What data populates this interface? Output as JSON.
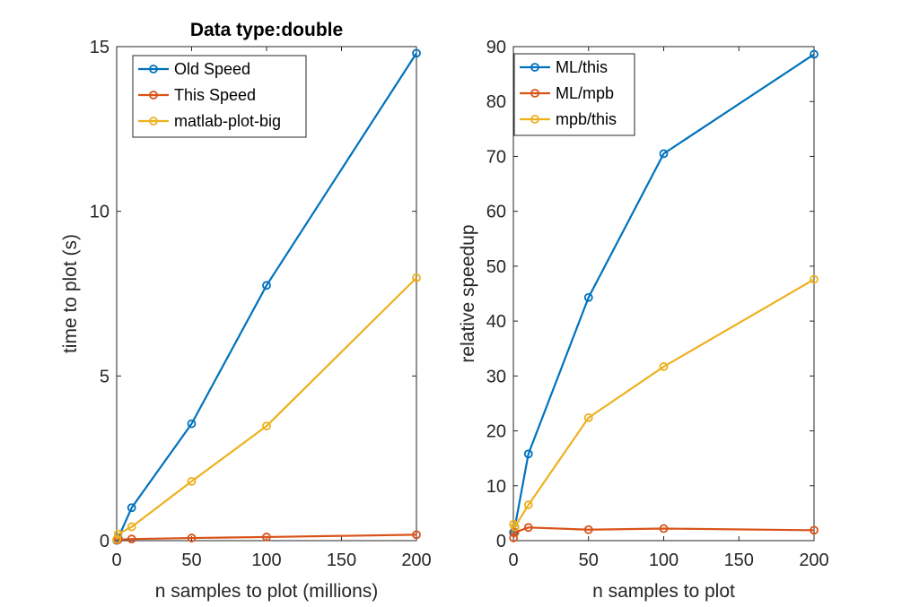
{
  "chart_data": [
    {
      "type": "line",
      "title": "Data type:double",
      "xlabel": "n samples to plot (millions)",
      "ylabel": "time to plot (s)",
      "xlim": [
        0,
        200
      ],
      "ylim": [
        0,
        15
      ],
      "xticks": [
        0,
        50,
        100,
        150,
        200
      ],
      "yticks": [
        0,
        5,
        10,
        15
      ],
      "grid": false,
      "legend_position": "top-left",
      "x": [
        0.1,
        1,
        10,
        50,
        100,
        200
      ],
      "series": [
        {
          "name": "Old Speed",
          "color": "#0072BD",
          "values": [
            0.01,
            0.08,
            1.0,
            3.55,
            7.75,
            14.8
          ]
        },
        {
          "name": "This Speed",
          "color": "#D95319",
          "values": [
            0.02,
            0.03,
            0.05,
            0.08,
            0.11,
            0.18
          ]
        },
        {
          "name": "matlab-plot-big",
          "color": "#EDB120",
          "values": [
            0.04,
            0.2,
            0.42,
            1.8,
            3.48,
            7.98
          ]
        }
      ]
    },
    {
      "type": "line",
      "title": "",
      "xlabel": "n samples to plot",
      "ylabel": "relative speedup",
      "xlim": [
        0,
        200
      ],
      "ylim": [
        0,
        90
      ],
      "xticks": [
        0,
        50,
        100,
        150,
        200
      ],
      "yticks": [
        0,
        10,
        20,
        30,
        40,
        50,
        60,
        70,
        80,
        90
      ],
      "grid": false,
      "legend_position": "top-left",
      "x": [
        0.1,
        1,
        10,
        50,
        100,
        200
      ],
      "series": [
        {
          "name": "ML/this",
          "color": "#0072BD",
          "values": [
            1.5,
            2.5,
            15.8,
            44.3,
            70.5,
            88.6
          ]
        },
        {
          "name": "ML/mpb",
          "color": "#D95319",
          "values": [
            0.5,
            1.5,
            2.4,
            2.0,
            2.2,
            1.9
          ]
        },
        {
          "name": "mpb/this",
          "color": "#EDB120",
          "values": [
            3.0,
            2.5,
            6.5,
            22.4,
            31.7,
            47.6
          ]
        }
      ]
    }
  ]
}
